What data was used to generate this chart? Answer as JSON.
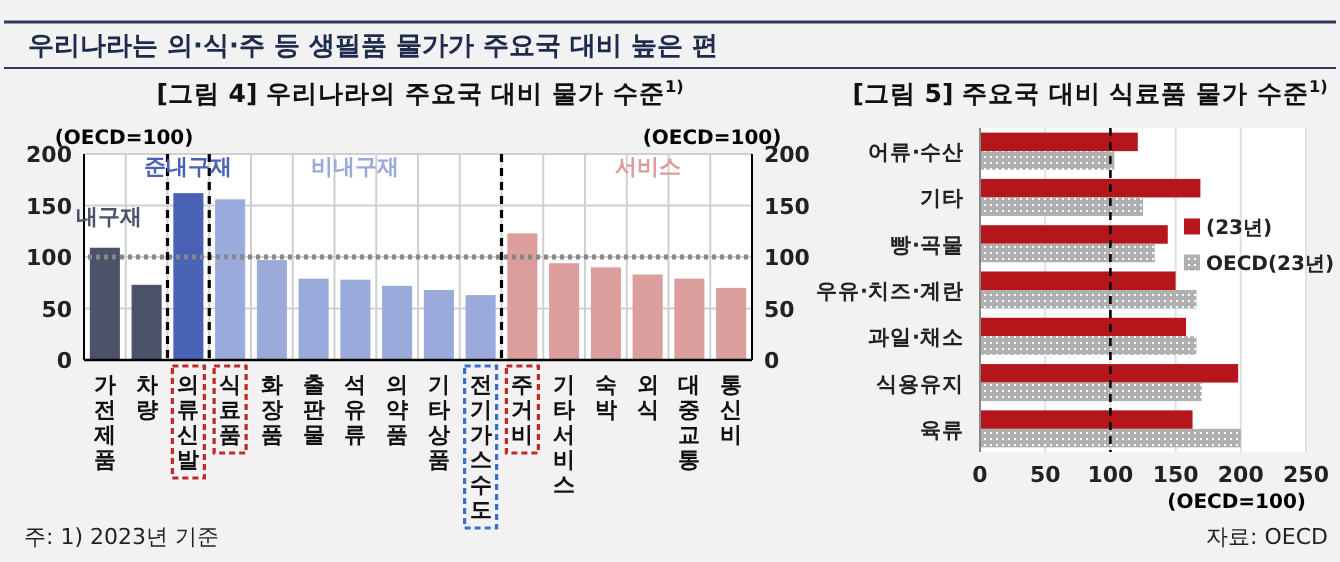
{
  "chart_data": [
    {
      "type": "bar",
      "title": "[그림 4] 우리나라의 주요국 대비 물가 수준$^{1)}$",
      "ylabel": "(OECD=100)",
      "y2label": "(OECD=100)",
      "categories": [
        "가전제품",
        "차량",
        "의류신발",
        "식료품",
        "화장품",
        "출판물",
        "석유류",
        "의약품",
        "기타상품",
        "전기가스수도",
        "주거비",
        "기타서비스",
        "숙박",
        "외식",
        "대중교통",
        "통신비"
      ],
      "values": [
        109,
        73,
        162,
        156,
        97,
        79,
        78,
        72,
        68,
        63,
        123,
        94,
        90,
        83,
        79,
        70
      ],
      "colors": [
        "#4b5368",
        "#4b5368",
        "#4a62b6",
        "#99aadb",
        "#99aadb",
        "#99aadb",
        "#99aadb",
        "#99aadb",
        "#99aadb",
        "#99aadb",
        "#dc9d9d",
        "#dc9d9d",
        "#dc9d9d",
        "#dc9d9d",
        "#dc9d9d",
        "#dc9d9d"
      ],
      "ylim": [
        0,
        200
      ],
      "yticks": [
        0,
        50,
        100,
        150,
        200
      ],
      "y2lim": [
        0,
        200
      ],
      "y2ticks": [
        0,
        50,
        100,
        150,
        200
      ],
      "grid": true,
      "ref_lines": [
        {
          "axis": "y",
          "value": 100,
          "color": "#888888",
          "line_style": "dotted"
        }
      ],
      "annotations": [
        "우리나라는 의·식·주 등 생필품 물가가 주요국 대비 높은 편",
        "주: 1) 2023년 기준",
        "내구재",
        "준내구재",
        "비내구재",
        "서비스"
      ]
    },
    {
      "type": "bar",
      "orientation": "horizontal",
      "title": "[그림 5] 주요국 대비 식료품 물가 수준$^{1)}$",
      "xlabel": "(OECD=100)",
      "categories": [
        "어류·수산",
        "기타",
        "빵·곡물",
        "우유·치즈·계란",
        "과일·채소",
        "식용유지",
        "육류"
      ],
      "series": [
        {
          "name": "(23년)",
          "color": "#b5161c",
          "values": [
            121,
            169,
            144,
            150,
            158,
            198,
            163
          ]
        },
        {
          "name": "OECD(23년)",
          "color": "#b0b0b0",
          "values": [
            103,
            125,
            134,
            166,
            166,
            170,
            200
          ]
        }
      ],
      "xlim": [
        0,
        250
      ],
      "xticks": [
        0,
        50,
        100,
        150,
        200,
        250
      ],
      "grid": "x",
      "legend": "right",
      "ref_lines": [
        {
          "axis": "x",
          "value": 100,
          "color": "#000000",
          "line_style": "dashed"
        }
      ],
      "annotations": [
        "자료: OECD"
      ]
    }
  ]
}
